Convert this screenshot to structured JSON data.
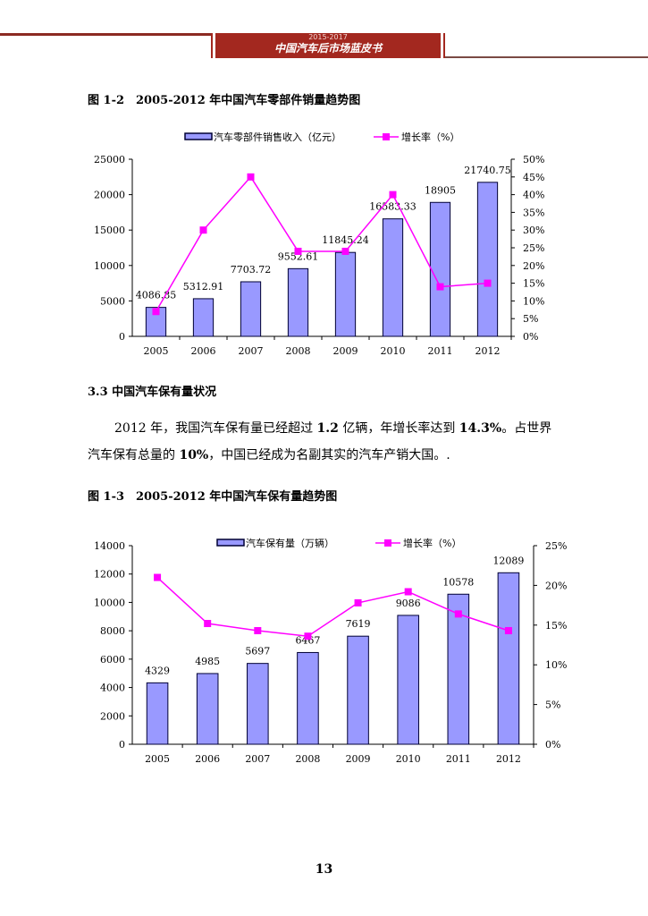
{
  "header": {
    "years": "2015-2017",
    "title": "中国汽车后市场蓝皮书"
  },
  "figure1": {
    "caption": "图 1-2　2005-2012 年中国汽车零部件销量趋势图"
  },
  "section": {
    "heading": "3.3  中国汽车保有量状况"
  },
  "paragraph": {
    "p1": "2012 年，我国汽车保有量已经超过 ",
    "b1": "1.2",
    "p2": " 亿辆，年增长率达到 ",
    "b2": "14.3%",
    "p3": "。占世界汽车保有总量的 ",
    "b3": "10%",
    "p4": "，中国已经成为名副其实的汽车产销大国。."
  },
  "figure2": {
    "caption": "图 1-3　2005-2012 年中国汽车保有量趋势图"
  },
  "page_number": "13",
  "colors": {
    "bar": "#9999ff",
    "bar_edge": "#000033",
    "line": "#ff00ff",
    "header": "#a3281f"
  },
  "chart_data": [
    {
      "type": "bar+line",
      "categories": [
        "2005",
        "2006",
        "2007",
        "2008",
        "2009",
        "2010",
        "2011",
        "2012"
      ],
      "series": [
        {
          "name": "汽车零部件销售收入（亿元）",
          "type": "bar",
          "axis": "left",
          "values": [
            4086.85,
            5312.91,
            7703.72,
            9552.61,
            11845.24,
            16583.33,
            18905,
            21740.75
          ],
          "labels": [
            "4086.85",
            "5312.91",
            "7703.72",
            "9552.61",
            "11845.24",
            "16583.33",
            "18905",
            "21740.75"
          ]
        },
        {
          "name": "增长率（%）",
          "type": "line",
          "axis": "right",
          "values": [
            7,
            30,
            45,
            24,
            24,
            40,
            14,
            15
          ]
        }
      ],
      "left_axis": {
        "ylim": [
          0,
          25000
        ],
        "ticks": [
          "0",
          "5000",
          "10000",
          "15000",
          "20000",
          "25000"
        ]
      },
      "right_axis": {
        "ylim": [
          0,
          50
        ],
        "ticks": [
          "0%",
          "5%",
          "10%",
          "15%",
          "20%",
          "25%",
          "30%",
          "35%",
          "40%",
          "45%",
          "50%"
        ]
      },
      "legend": "top",
      "grid": false
    },
    {
      "type": "bar+line",
      "categories": [
        "2005",
        "2006",
        "2007",
        "2008",
        "2009",
        "2010",
        "2011",
        "2012"
      ],
      "series": [
        {
          "name": "汽车保有量（万辆）",
          "type": "bar",
          "axis": "left",
          "values": [
            4329,
            4985,
            5697,
            6467,
            7619,
            9086,
            10578,
            12089
          ],
          "labels": [
            "4329",
            "4985",
            "5697",
            "6467",
            "7619",
            "9086",
            "10578",
            "12089"
          ]
        },
        {
          "name": "增长率（%）",
          "type": "line",
          "axis": "right",
          "values": [
            21.0,
            15.2,
            14.3,
            13.6,
            17.8,
            19.2,
            16.4,
            14.3
          ]
        }
      ],
      "left_axis": {
        "ylim": [
          0,
          14000
        ],
        "ticks": [
          "0",
          "2000",
          "4000",
          "6000",
          "8000",
          "10000",
          "12000",
          "14000"
        ]
      },
      "right_axis": {
        "ylim": [
          0,
          25
        ],
        "ticks": [
          "0%",
          "5%",
          "10%",
          "15%",
          "20%",
          "25%"
        ]
      },
      "legend": "top",
      "grid": false
    }
  ]
}
